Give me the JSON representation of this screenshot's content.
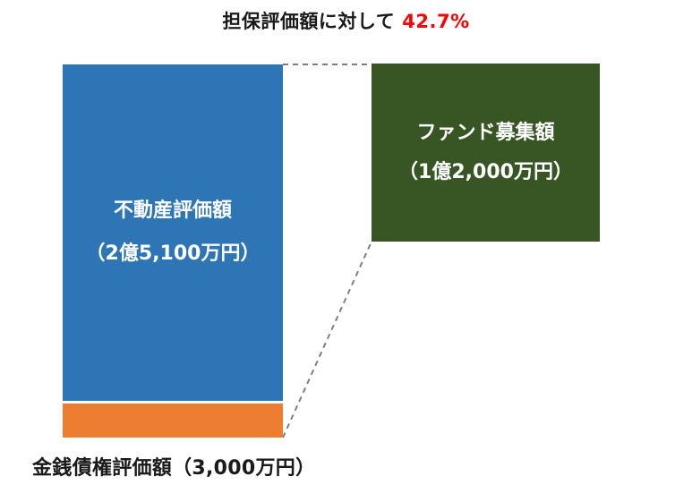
{
  "title": {
    "text": "担保評価額に対して",
    "percent": "42.7%",
    "percent_color": "#ff0000"
  },
  "blocks": {
    "real_estate": {
      "label": "不動産評価額",
      "amount": "（2億5,100万円）",
      "color": "#2e75b6"
    },
    "receivables": {
      "label": "金銭債権評価額（3,000万円）",
      "color": "#ed7d31"
    },
    "fund": {
      "label": "ファンド募集額",
      "amount": "（1億2,000万円）",
      "color": "#375623"
    }
  }
}
